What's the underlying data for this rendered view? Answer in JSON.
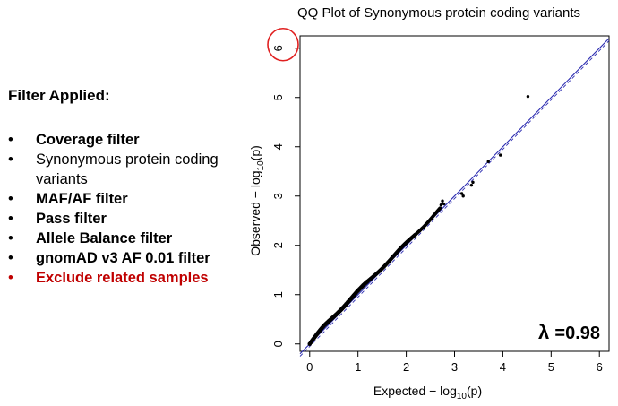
{
  "filters": {
    "title": "Filter Applied:",
    "items": [
      {
        "label": "Coverage filter",
        "style": "bold"
      },
      {
        "label": "Synonymous protein coding variants",
        "style": "normal"
      },
      {
        "label": "MAF/AF filter",
        "style": "bold"
      },
      {
        "label": "Pass filter",
        "style": "bold"
      },
      {
        "label": "Allele Balance filter",
        "style": "bold"
      },
      {
        "label": "gnomAD v3 AF 0.01 filter",
        "style": "bold"
      },
      {
        "label": "Exclude related samples",
        "style": "red"
      }
    ],
    "bullet": "•"
  },
  "chart_data": {
    "type": "scatter",
    "title": "QQ Plot of Synonymous protein coding variants",
    "xlabel": "Expected − log10(p)",
    "ylabel": "Observed − log10(p)",
    "xlim": [
      -0.2,
      6.2
    ],
    "ylim": [
      -0.15,
      6.25
    ],
    "x_ticks": [
      0,
      1,
      2,
      3,
      4,
      5,
      6
    ],
    "y_ticks": [
      0,
      1,
      2,
      3,
      4,
      5,
      6
    ],
    "lambda_label": "λ",
    "lambda_value": "=0.98",
    "reference_line": "y = x",
    "dense_band": {
      "x_from": 0.0,
      "x_to": 2.7,
      "deviation": 0.05
    },
    "highlighted_tick": 6,
    "highlight_color": "#e02020",
    "point_color": "#000000",
    "line_color": "#2b2bb0",
    "tail_points": [
      {
        "x": 2.72,
        "y": 2.82
      },
      {
        "x": 2.75,
        "y": 2.9
      },
      {
        "x": 2.78,
        "y": 2.84
      },
      {
        "x": 3.15,
        "y": 3.05
      },
      {
        "x": 3.18,
        "y": 3.0
      },
      {
        "x": 3.35,
        "y": 3.22
      },
      {
        "x": 3.38,
        "y": 3.28
      },
      {
        "x": 3.7,
        "y": 3.7
      },
      {
        "x": 3.95,
        "y": 3.83
      },
      {
        "x": 4.52,
        "y": 5.02
      }
    ]
  }
}
